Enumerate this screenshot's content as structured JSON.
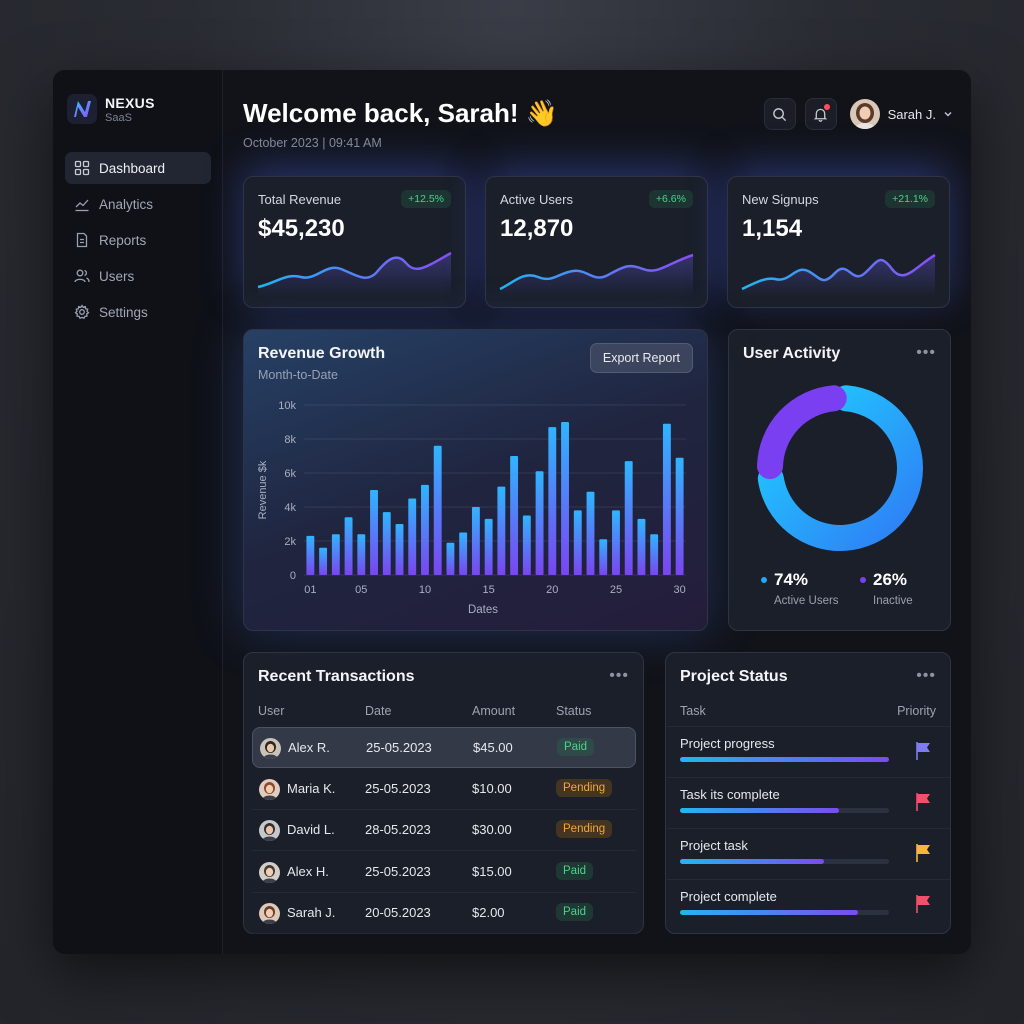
{
  "brand": {
    "name": "NEXUS",
    "sub": "SaaS"
  },
  "nav": [
    {
      "label": "Dashboard",
      "icon": "grid-icon",
      "active": true
    },
    {
      "label": "Analytics",
      "icon": "trend-icon",
      "active": false
    },
    {
      "label": "Reports",
      "icon": "document-icon",
      "active": false
    },
    {
      "label": "Users",
      "icon": "users-icon",
      "active": false
    },
    {
      "label": "Settings",
      "icon": "gear-icon",
      "active": false
    }
  ],
  "header": {
    "greeting": "Welcome back, Sarah! 👋",
    "datetime": "October 2023 | 09:41 AM",
    "user_name": "Sarah J."
  },
  "stats": [
    {
      "label": "Total Revenue",
      "value": "$45,230",
      "change": "+12.5%"
    },
    {
      "label": "Active Users",
      "value": "12,870",
      "change": "+6.6%"
    },
    {
      "label": "New Signups",
      "value": "1,154",
      "change": "+21.1%"
    }
  ],
  "revenue": {
    "title": "Revenue Growth",
    "subtitle": "Month-to-Date",
    "export_label": "Export Report"
  },
  "chart_data": {
    "type": "bar",
    "x": [
      1,
      2,
      3,
      4,
      5,
      6,
      7,
      8,
      9,
      10,
      11,
      12,
      13,
      14,
      15,
      16,
      17,
      18,
      19,
      20,
      21,
      22,
      23,
      24,
      25,
      26,
      27,
      28,
      29,
      30
    ],
    "values": [
      2300,
      1600,
      2400,
      3400,
      2400,
      5000,
      3700,
      3000,
      4500,
      5300,
      7600,
      1900,
      2500,
      4000,
      3300,
      5200,
      7000,
      3500,
      6100,
      8700,
      9000,
      3800,
      4900,
      2100,
      3800,
      6700,
      3300,
      2400,
      8900,
      6900
    ],
    "xticks": [
      "01",
      "05",
      "10",
      "15",
      "20",
      "25",
      "30"
    ],
    "xtick_values": [
      1,
      5,
      10,
      15,
      20,
      25,
      30
    ],
    "yticks": [
      "0",
      "2k",
      "4k",
      "6k",
      "8k",
      "10k"
    ],
    "ylim": [
      0,
      10000
    ],
    "xlabel": "Dates",
    "ylabel": "Revenue $k",
    "grid": true
  },
  "activity": {
    "title": "User Activity",
    "active_pct": "74%",
    "active_label": "Active Users",
    "inactive_pct": "26%",
    "inactive_label": "Inactive",
    "active_value": 74,
    "inactive_value": 26,
    "colors": {
      "active": "#1fa8f5",
      "inactive": "#7b3ff2"
    }
  },
  "transactions": {
    "title": "Recent Transactions",
    "headers": {
      "user": "User",
      "date": "Date",
      "amount": "Amount",
      "status": "Status"
    },
    "rows": [
      {
        "user": "Alex R.",
        "date": "25-05.2023",
        "amount": "$45.00",
        "status": "Paid"
      },
      {
        "user": "Maria K.",
        "date": "25-05.2023",
        "amount": "$10.00",
        "status": "Pending"
      },
      {
        "user": "David L.",
        "date": "28-05.2023",
        "amount": "$30.00",
        "status": "Pending"
      },
      {
        "user": "Alex H.",
        "date": "25-05.2023",
        "amount": "$15.00",
        "status": "Paid"
      },
      {
        "user": "Sarah J.",
        "date": "20-05.2023",
        "amount": "$2.00",
        "status": "Paid"
      }
    ]
  },
  "projects": {
    "title": "Project Status",
    "headers": {
      "task": "Task",
      "priority": "Priority"
    },
    "rows": [
      {
        "name": "Project progress",
        "progress": 1.0,
        "flag_color": "#7d7cf0"
      },
      {
        "name": "Task its complete",
        "progress": 0.76,
        "flag_color": "#f0506a"
      },
      {
        "name": "Project task",
        "progress": 0.69,
        "flag_color": "#f2b83c"
      },
      {
        "name": "Project complete",
        "progress": 0.85,
        "flag_color": "#f0506a"
      }
    ]
  }
}
